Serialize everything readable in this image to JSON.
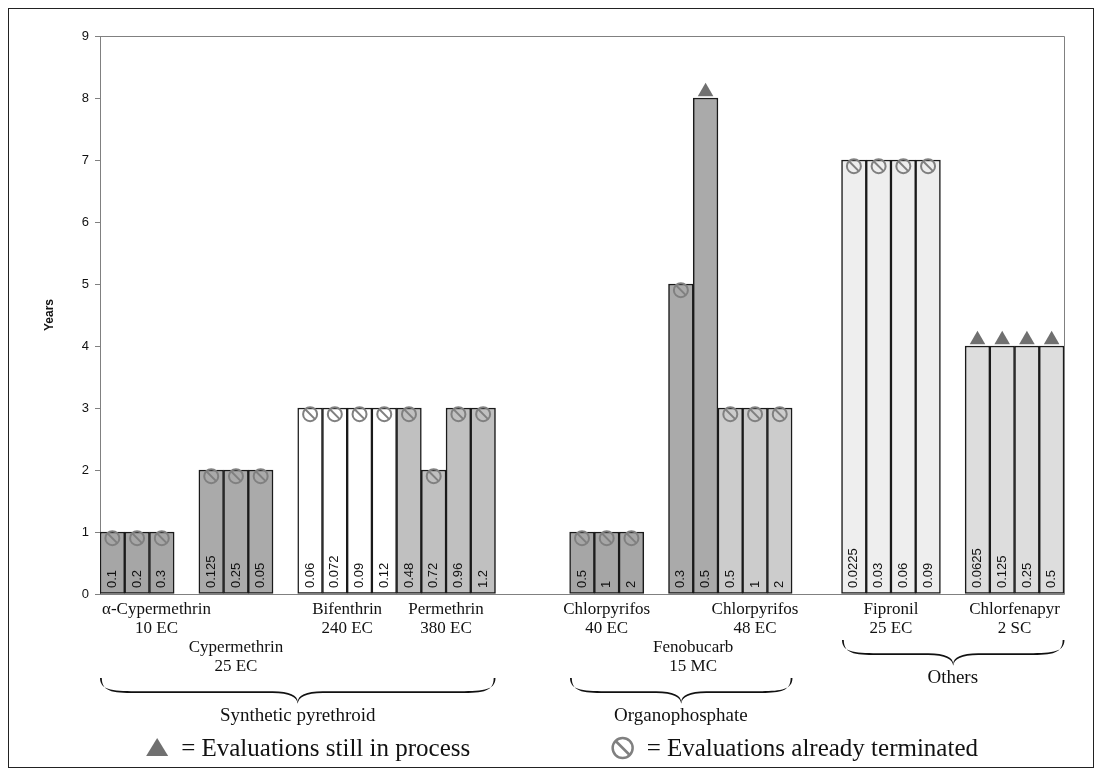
{
  "chart_data": {
    "type": "bar",
    "ylabel": "Years",
    "ylim": [
      0,
      9
    ],
    "yticks": [
      0,
      1,
      2,
      3,
      4,
      5,
      6,
      7,
      8,
      9
    ],
    "grid": false,
    "legend": "bottom",
    "categories": [
      "0.1",
      "0.2",
      "0.3",
      null,
      "0.125",
      "0.25",
      "0.05",
      null,
      "0.06",
      "0.072",
      "0.09",
      "0.12",
      "0.48",
      "0.72",
      "0.96",
      "1.2",
      null,
      null,
      null,
      "0.5",
      "1",
      "2",
      null,
      "0.3",
      "0.5",
      "0.5",
      "1",
      "2",
      null,
      null,
      "0.0225",
      "0.03",
      "0.06",
      "0.09",
      null,
      "0.0625",
      "0.125",
      "0.25",
      "0.5"
    ],
    "series": [
      {
        "name": "α-Cypermethrin\n10 EC",
        "color": "#a6a6a6",
        "values": [
          1,
          1,
          1,
          null,
          null,
          null,
          null,
          null,
          null,
          null,
          null,
          null,
          null,
          null,
          null,
          null,
          null,
          null,
          null,
          null,
          null,
          null,
          null,
          null,
          null,
          null,
          null,
          null,
          null,
          null,
          null,
          null,
          null,
          null,
          null,
          null,
          null,
          null,
          null
        ]
      },
      {
        "name": "Cypermethrin\n25 EC",
        "color": "#aaaaaa",
        "values": [
          null,
          null,
          null,
          null,
          2,
          2,
          2,
          null,
          null,
          null,
          null,
          null,
          null,
          null,
          null,
          null,
          null,
          null,
          null,
          null,
          null,
          null,
          null,
          null,
          null,
          null,
          null,
          null,
          null,
          null,
          null,
          null,
          null,
          null,
          null,
          null,
          null,
          null,
          null
        ]
      },
      {
        "name": "Bifenthrin\n240 EC",
        "color": "#ffffff",
        "values": [
          null,
          null,
          null,
          null,
          null,
          null,
          null,
          null,
          3,
          3,
          3,
          3,
          null,
          null,
          null,
          null,
          null,
          null,
          null,
          null,
          null,
          null,
          null,
          null,
          null,
          null,
          null,
          null,
          null,
          null,
          null,
          null,
          null,
          null,
          null,
          null,
          null,
          null,
          null
        ]
      },
      {
        "name": "Permethrin\n380 EC",
        "color": "#c0c0c0",
        "values": [
          null,
          null,
          null,
          null,
          null,
          null,
          null,
          null,
          null,
          null,
          null,
          null,
          3,
          2,
          3,
          3,
          null,
          null,
          null,
          null,
          null,
          null,
          null,
          null,
          null,
          null,
          null,
          null,
          null,
          null,
          null,
          null,
          null,
          null,
          null,
          null,
          null,
          null,
          null
        ]
      },
      {
        "name": "Chlorpyrifos\n40 EC",
        "color": "#a6a6a6",
        "values": [
          null,
          null,
          null,
          null,
          null,
          null,
          null,
          null,
          null,
          null,
          null,
          null,
          null,
          null,
          null,
          null,
          null,
          null,
          null,
          1,
          1,
          1,
          null,
          null,
          null,
          null,
          null,
          null,
          null,
          null,
          null,
          null,
          null,
          null,
          null,
          null,
          null,
          null,
          null
        ]
      },
      {
        "name": "Fenobucarb\n15 MC",
        "color": "#aaaaaa",
        "values": [
          null,
          null,
          null,
          null,
          null,
          null,
          null,
          null,
          null,
          null,
          null,
          null,
          null,
          null,
          null,
          null,
          null,
          null,
          null,
          null,
          null,
          null,
          null,
          5,
          8,
          null,
          null,
          null,
          null,
          null,
          null,
          null,
          null,
          null,
          null,
          null,
          null,
          null,
          null
        ]
      },
      {
        "name": "Chlorpyrifos\n48 EC",
        "color": "#cccccc",
        "values": [
          null,
          null,
          null,
          null,
          null,
          null,
          null,
          null,
          null,
          null,
          null,
          null,
          null,
          null,
          null,
          null,
          null,
          null,
          null,
          null,
          null,
          null,
          null,
          null,
          null,
          3,
          3,
          3,
          null,
          null,
          null,
          null,
          null,
          null,
          null,
          null,
          null,
          null,
          null
        ]
      },
      {
        "name": "Fipronil\n25 EC",
        "color": "#eeeeee",
        "values": [
          null,
          null,
          null,
          null,
          null,
          null,
          null,
          null,
          null,
          null,
          null,
          null,
          null,
          null,
          null,
          null,
          null,
          null,
          null,
          null,
          null,
          null,
          null,
          null,
          null,
          null,
          null,
          null,
          null,
          null,
          7,
          7,
          7,
          7,
          null,
          null,
          null,
          null,
          null
        ]
      },
      {
        "name": "Chlorfenapyr\n2 SC",
        "color": "#dddddd",
        "values": [
          null,
          null,
          null,
          null,
          null,
          null,
          null,
          null,
          null,
          null,
          null,
          null,
          null,
          null,
          null,
          null,
          null,
          null,
          null,
          null,
          null,
          null,
          null,
          null,
          null,
          null,
          null,
          null,
          null,
          null,
          null,
          null,
          null,
          null,
          null,
          4,
          4,
          4,
          4
        ]
      },
      {
        "name": "= Evaluations still in process",
        "type": "scatter",
        "marker": "triangle",
        "color": "#707070",
        "values": [
          null,
          null,
          null,
          null,
          null,
          null,
          null,
          null,
          null,
          null,
          null,
          null,
          null,
          null,
          null,
          null,
          null,
          null,
          null,
          null,
          null,
          null,
          null,
          null,
          8.1,
          null,
          null,
          null,
          null,
          null,
          null,
          null,
          null,
          null,
          null,
          4.1,
          4.1,
          4.1,
          4.1
        ]
      },
      {
        "name": "= Evaluations already terminated",
        "type": "scatter",
        "marker": "circle",
        "color": "#808080",
        "values": [
          0.9,
          0.9,
          0.9,
          null,
          1.9,
          1.9,
          1.9,
          null,
          2.9,
          2.9,
          2.9,
          2.9,
          2.9,
          1.9,
          2.9,
          2.9,
          null,
          null,
          null,
          0.9,
          0.9,
          0.9,
          null,
          4.9,
          null,
          2.9,
          2.9,
          2.9,
          null,
          null,
          6.9,
          6.9,
          6.9,
          6.9,
          null,
          null,
          null,
          null,
          null
        ]
      }
    ],
    "annotations": [
      "Synthetic pyrethroid",
      "Organophosphate",
      "Others"
    ]
  }
}
